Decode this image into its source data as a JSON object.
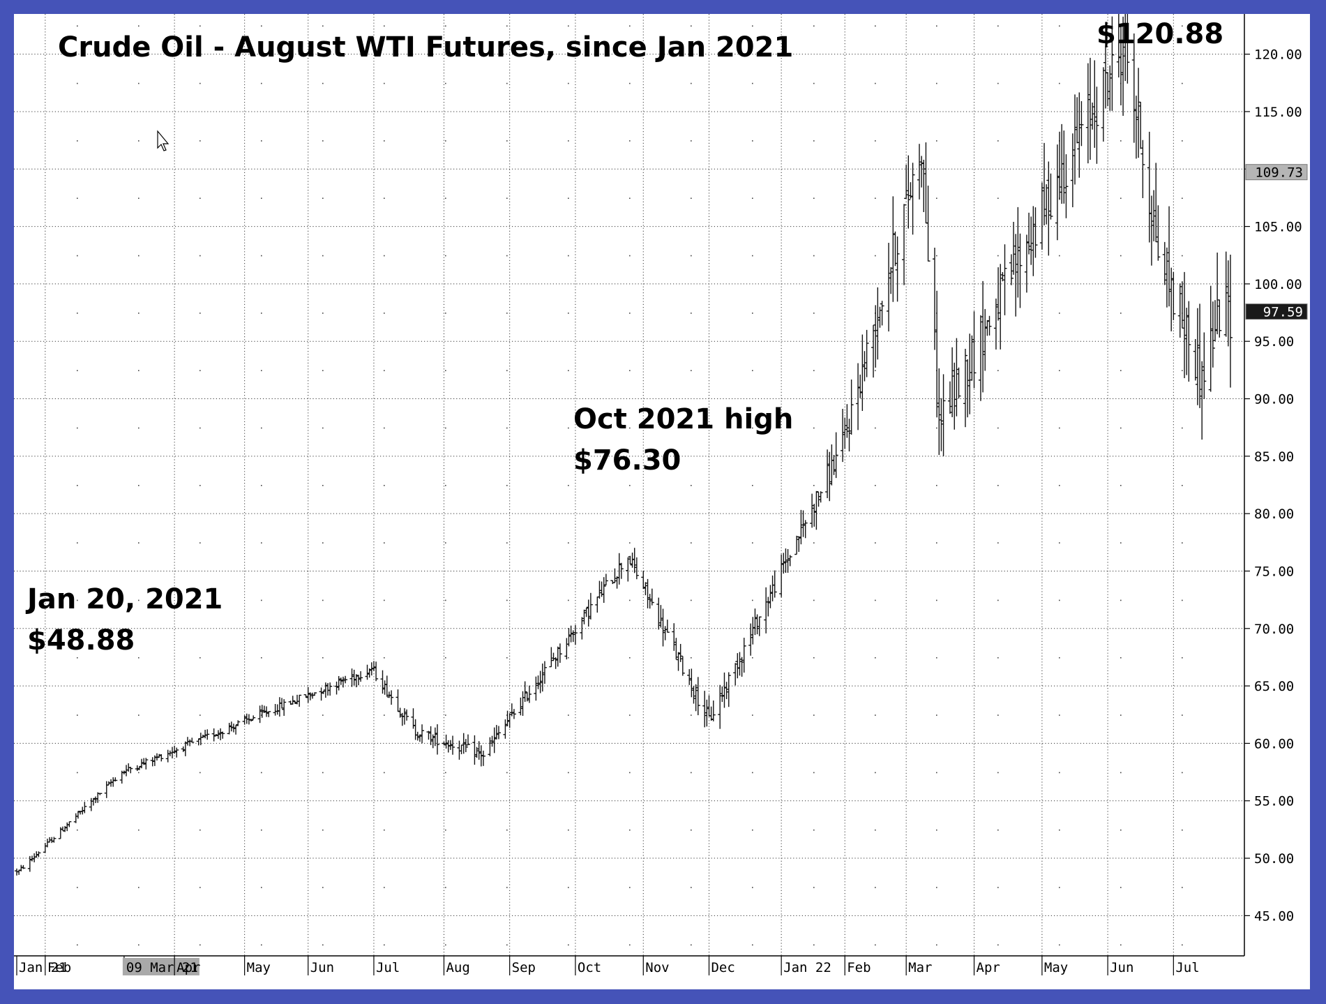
{
  "chart_data": {
    "type": "ohlc",
    "title": "Crude Oil - August WTI Futures, since Jan 2021",
    "xlabel": "",
    "ylabel": "",
    "ylim": [
      41.5,
      123.5
    ],
    "y_ticks": [
      45,
      50,
      55,
      60,
      65,
      70,
      75,
      80,
      85,
      90,
      95,
      100,
      105,
      110,
      115,
      120
    ],
    "y_tick_labels": [
      "45.00",
      "50.00",
      "55.00",
      "60.00",
      "65.00",
      "70.00",
      "75.00",
      "80.00",
      "85.00",
      "90.00",
      "95.00",
      "100.00",
      "105.00",
      "110.00",
      "115.00",
      "120.00"
    ],
    "grid": true,
    "x_axis_labels": [
      {
        "date": "2021-01-19",
        "label": "Jan 21"
      },
      {
        "date": "2021-02-01",
        "label": "Feb"
      },
      {
        "date": "2021-03-09",
        "label": "09 Mar 21",
        "highlighted": true
      },
      {
        "date": "2021-04-01",
        "label": "Apr"
      },
      {
        "date": "2021-05-03",
        "label": "May"
      },
      {
        "date": "2021-06-01",
        "label": "Jun"
      },
      {
        "date": "2021-07-01",
        "label": "Jul"
      },
      {
        "date": "2021-08-02",
        "label": "Aug"
      },
      {
        "date": "2021-09-01",
        "label": "Sep"
      },
      {
        "date": "2021-10-01",
        "label": "Oct"
      },
      {
        "date": "2021-11-01",
        "label": "Nov"
      },
      {
        "date": "2021-12-01",
        "label": "Dec"
      },
      {
        "date": "2022-01-03",
        "label": "Jan 22"
      },
      {
        "date": "2022-02-01",
        "label": "Feb"
      },
      {
        "date": "2022-03-01",
        "label": "Mar"
      },
      {
        "date": "2022-04-01",
        "label": "Apr"
      },
      {
        "date": "2022-05-02",
        "label": "May"
      },
      {
        "date": "2022-06-01",
        "label": "Jun"
      },
      {
        "date": "2022-07-01",
        "label": "Jul"
      }
    ],
    "x_range": [
      "2021-01-19",
      "2022-07-27"
    ],
    "key_points": [
      {
        "date": "2021-01-20",
        "value": 48.88
      },
      {
        "date": "2021-03-08",
        "value": 57.5
      },
      {
        "date": "2021-06-30",
        "value": 66.5
      },
      {
        "date": "2021-07-20",
        "value": 61
      },
      {
        "date": "2021-08-20",
        "value": 59
      },
      {
        "date": "2021-10-25",
        "value": 76.3
      },
      {
        "date": "2021-12-01",
        "value": 62
      },
      {
        "date": "2022-01-31",
        "value": 86
      },
      {
        "date": "2022-03-08",
        "value": 112
      },
      {
        "date": "2022-03-16",
        "value": 88
      },
      {
        "date": "2022-06-09",
        "value": 120.88
      },
      {
        "date": "2022-06-24",
        "value": 103
      },
      {
        "date": "2022-07-14",
        "value": 92
      },
      {
        "date": "2022-07-22",
        "value": 97.59
      }
    ],
    "volatility_anchors": [
      {
        "date": "2021-01-19",
        "value": 0.4
      },
      {
        "date": "2021-06-15",
        "value": 0.9
      },
      {
        "date": "2021-11-15",
        "value": 1.6
      },
      {
        "date": "2022-01-15",
        "value": 1.8
      },
      {
        "date": "2022-02-25",
        "value": 4.5
      },
      {
        "date": "2022-07-27",
        "value": 5.5
      }
    ],
    "price_markers": [
      {
        "value": 109.73,
        "label": "109.73",
        "style": "gray"
      },
      {
        "value": 97.59,
        "label": "97.59",
        "style": "dark"
      }
    ],
    "annotations": [
      {
        "id": "start",
        "lines": [
          "Jan 20, 2021",
          "$48.88"
        ]
      },
      {
        "id": "oct-high",
        "lines": [
          "Oct 2021 high",
          "$76.30"
        ]
      },
      {
        "id": "peak",
        "lines": [
          "$120.88"
        ]
      }
    ]
  }
}
